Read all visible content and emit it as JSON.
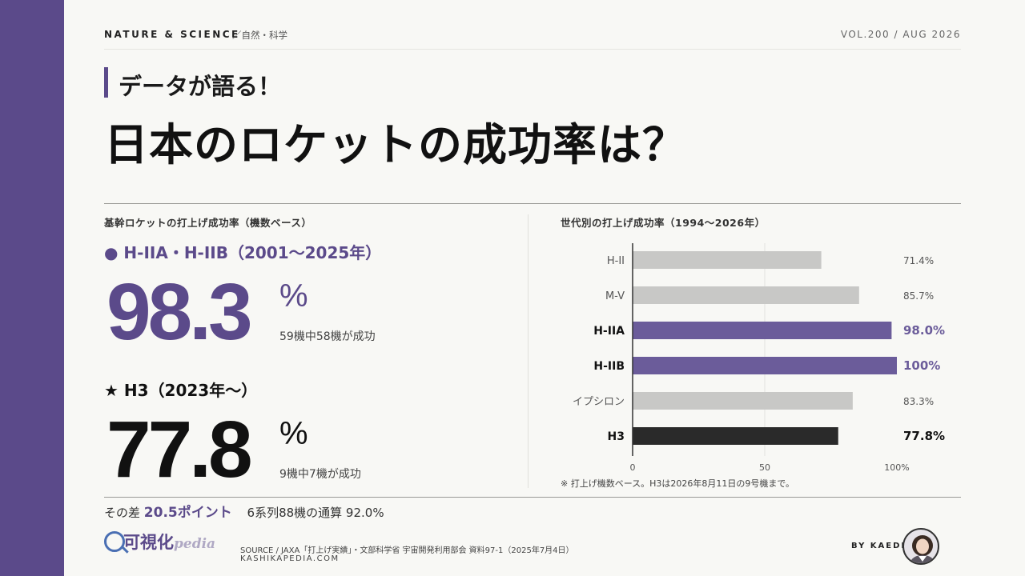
{
  "header": {
    "category": "NATURE & SCIENCE",
    "subcategory": "／自然・科学",
    "volume": "VOL.200 / AUG 2026"
  },
  "kicker": "データが語る！",
  "headline": "日本のロケットの成功率は？",
  "left_panel": {
    "title": "基幹ロケットの打上げ成功率（機数ベース）",
    "group1": {
      "label": "● H-IIA・H-IIB（2001〜2025年）",
      "value": "98.3",
      "unit": "%",
      "note": "59機中58機が成功"
    },
    "group2": {
      "label": "★ H3（2023年〜）",
      "value": "77.8",
      "unit": "%",
      "note": "9機中7機が成功"
    },
    "difference": {
      "prefix": "その差",
      "value": "20.5ポイント",
      "total": "6系列88機の通算 92.0%"
    }
  },
  "right_panel": {
    "title": "世代別の打上げ成功率（1994〜2026年）",
    "note": "※ 打上げ機数ベース。H3は2026年8月11日の9号機まで。"
  },
  "chart_data": {
    "type": "bar",
    "orientation": "horizontal",
    "categories": [
      "H-II",
      "M-V",
      "H-IIA",
      "H-IIB",
      "イプシロン",
      "H3"
    ],
    "values": [
      71.4,
      85.7,
      98.0,
      100,
      83.3,
      77.8
    ],
    "value_labels": [
      "71.4%",
      "85.7%",
      "98.0%",
      "100%",
      "83.3%",
      "77.8%"
    ],
    "highlight": [
      "none",
      "none",
      "accent",
      "accent",
      "none",
      "dark"
    ],
    "xlim": [
      0,
      100
    ],
    "xticks": [
      "0",
      "50",
      "100%"
    ],
    "colors": {
      "accent": "#6b5c9a",
      "none": "#c8c8c6",
      "dark": "#2a2a2a"
    },
    "grid": true
  },
  "footer": {
    "logo_main": "可視化",
    "logo_sub": "pedia",
    "source": "SOURCE / JAXA「打上げ実績」・文部科学省 宇宙開発利用部会 資料97-1（2025年7月4日）",
    "site": "KASHIKAPEDIA.COM",
    "byline": "BY KAEDE"
  },
  "colors": {
    "brand": "#5b4a8a",
    "text": "#1a1a1a",
    "background": "#f8f8f5"
  }
}
